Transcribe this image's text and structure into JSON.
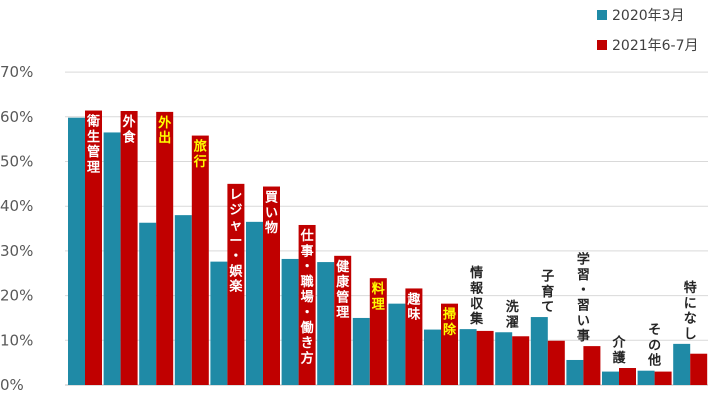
{
  "chart_data": {
    "type": "bar",
    "ylim": [
      0,
      70
    ],
    "yticks": [
      "0%",
      "10%",
      "20%",
      "30%",
      "40%",
      "50%",
      "60%",
      "70%"
    ],
    "grid": true,
    "legend_position": "top-right",
    "categories": [
      "衛生管理",
      "外食",
      "外出",
      "旅行",
      "レジャー・娯楽",
      "買い物",
      "仕事・職場・働き方",
      "健康管理",
      "料理",
      "趣味",
      "掃除",
      "情報収集",
      "洗濯",
      "子育て",
      "学習・習い事",
      "介護",
      "その他",
      "特になし"
    ],
    "label_color": [
      "#ffffff",
      "#ffffff",
      "#ffff00",
      "#ffff00",
      "#ffffff",
      "#ffffff",
      "#ffffff",
      "#ffffff",
      "#ffff00",
      "#ffffff",
      "#ffff00",
      "#262626",
      "#262626",
      "#262626",
      "#262626",
      "#262626",
      "#262626",
      "#262626"
    ],
    "series": [
      {
        "name": "2020年3月",
        "color": "#1f8aa6",
        "values": [
          59.8,
          56.5,
          36.3,
          38.0,
          27.6,
          36.5,
          28.2,
          27.5,
          15.0,
          18.2,
          12.4,
          12.5,
          11.8,
          15.2,
          5.6,
          3.0,
          3.2,
          9.2
        ]
      },
      {
        "name": "2021年6-7月",
        "color": "#c00000",
        "values": [
          61.4,
          61.3,
          61.1,
          55.8,
          45.0,
          44.4,
          35.8,
          28.9,
          23.9,
          21.6,
          18.2,
          12.1,
          10.9,
          9.9,
          8.7,
          3.8,
          3.0,
          7.0
        ]
      }
    ]
  }
}
